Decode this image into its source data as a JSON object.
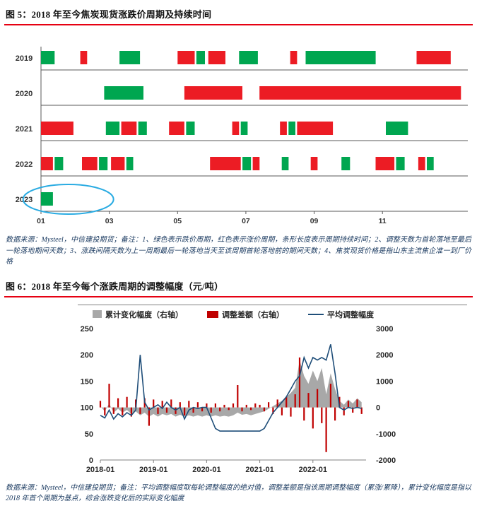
{
  "fig5": {
    "title": "图 5：2018 年至今焦炭现货涨跌价周期及持续时间",
    "note": "数据来源：Mysteel，中信建投期货；备注：1、绿色表示跌价周期，红色表示涨价周期，条形长度表示周期持续时间；2、调整天数为首轮落地至最后一轮落地期间天数；3、涨跌间隔天数为上一周期最后一轮落地当天至该周期首轮落地前的期间天数；4、焦炭现货价格是指山东主流焦企准一到厂价格"
  },
  "fig6": {
    "title": "图 6：2018 年至今每个涨跌周期的调整幅度（元/吨）",
    "note": "数据来源：Mysteel，中信建投期货；备注：平均调整幅度取每轮调整幅度的绝对值，调整差额是指该周期调整幅度（累涨/累降），累计变化幅度是指以 2018 年首个周期为基点，综合涨跌变化后的实际变化幅度"
  },
  "colors": {
    "fall_green": "#00a650",
    "rise_red": "#ec1c24",
    "rule_red": "#e60012",
    "note_blue": "#17375e",
    "line_blue": "#1f4e79",
    "bar_red": "#c00000",
    "area_gray": "#a8a8a8",
    "ellipse_blue": "#29abe2",
    "axis_gray": "#595959"
  },
  "chart_data": [
    {
      "type": "bar",
      "subtype": "gantt-cycles",
      "title": "2018 年至今焦炭现货涨跌价周期及持续时间",
      "x_ticks": [
        "01",
        "03",
        "05",
        "07",
        "09",
        "11"
      ],
      "x_tick_months": [
        1,
        3,
        5,
        7,
        9,
        11
      ],
      "x_range": [
        1,
        13.5
      ],
      "color_meaning": {
        "green": "跌价周期",
        "red": "涨价周期"
      },
      "rows": [
        {
          "year": "2019",
          "bars": [
            [
              1.0,
              1.4,
              "g"
            ],
            [
              2.15,
              2.35,
              "r"
            ],
            [
              3.3,
              3.9,
              "g"
            ],
            [
              5.0,
              5.5,
              "r"
            ],
            [
              5.55,
              5.8,
              "g"
            ],
            [
              5.9,
              6.4,
              "r"
            ],
            [
              6.8,
              7.35,
              "g"
            ],
            [
              8.3,
              8.5,
              "r"
            ],
            [
              8.75,
              10.8,
              "g"
            ],
            [
              12.0,
              13.0,
              "r"
            ]
          ]
        },
        {
          "year": "2020",
          "bars": [
            [
              2.85,
              4.0,
              "g"
            ],
            [
              5.2,
              6.9,
              "r"
            ],
            [
              7.4,
              13.3,
              "r"
            ]
          ]
        },
        {
          "year": "2021",
          "bars": [
            [
              1.0,
              1.95,
              "r"
            ],
            [
              2.9,
              3.3,
              "g"
            ],
            [
              3.35,
              3.8,
              "r"
            ],
            [
              3.85,
              4.1,
              "g"
            ],
            [
              4.75,
              5.2,
              "r"
            ],
            [
              5.25,
              5.5,
              "g"
            ],
            [
              6.6,
              6.8,
              "r"
            ],
            [
              6.85,
              7.05,
              "g"
            ],
            [
              8.0,
              8.2,
              "r"
            ],
            [
              8.25,
              8.45,
              "g"
            ],
            [
              8.5,
              9.55,
              "r"
            ],
            [
              11.1,
              11.75,
              "g"
            ]
          ]
        },
        {
          "year": "2022",
          "bars": [
            [
              1.0,
              1.35,
              "r"
            ],
            [
              1.4,
              1.65,
              "g"
            ],
            [
              2.2,
              2.65,
              "r"
            ],
            [
              2.7,
              2.95,
              "g"
            ],
            [
              3.05,
              3.45,
              "r"
            ],
            [
              3.5,
              3.7,
              "g"
            ],
            [
              5.95,
              6.85,
              "r"
            ],
            [
              6.9,
              7.15,
              "g"
            ],
            [
              7.2,
              7.4,
              "r"
            ],
            [
              8.05,
              8.25,
              "g"
            ],
            [
              8.9,
              9.1,
              "r"
            ],
            [
              9.8,
              10.05,
              "g"
            ],
            [
              10.8,
              11.35,
              "r"
            ],
            [
              11.4,
              11.65,
              "g"
            ],
            [
              12.05,
              12.25,
              "r"
            ],
            [
              12.3,
              12.5,
              "g"
            ]
          ]
        },
        {
          "year": "2023",
          "bars": [
            [
              1.0,
              1.35,
              "g"
            ]
          ]
        }
      ],
      "annotation": {
        "shape": "ellipse",
        "row": "2023",
        "center_month": 1.8
      }
    },
    {
      "type": "line",
      "subtype": "combo-area-bar-line",
      "title": "2018 年至今每个涨跌周期的调整幅度（元/吨）",
      "legend": [
        "累计变化幅度（右轴）",
        "调整差额（右轴）",
        "平均调整幅度"
      ],
      "x_tick_labels": [
        "2018-01",
        "2019-01",
        "2020-01",
        "2021-01",
        "2022-01"
      ],
      "x_tick_index": [
        0,
        12,
        24,
        36,
        48
      ],
      "n_points": 60,
      "left_axis": {
        "ticks": [
          0,
          50,
          100,
          150,
          200,
          250
        ],
        "range": [
          0,
          250
        ]
      },
      "right_axis": {
        "ticks": [
          -2000,
          -1000,
          0,
          1000,
          2000,
          3000
        ],
        "range": [
          -2000,
          3000
        ]
      },
      "series": [
        {
          "name": "累计变化幅度（右轴）",
          "type": "area",
          "axis": "right",
          "values": [
            50,
            -150,
            150,
            -200,
            -50,
            -200,
            -100,
            -250,
            -150,
            -300,
            -200,
            -350,
            -250,
            -350,
            -250,
            -300,
            -250,
            -350,
            -280,
            -350,
            -300,
            -350,
            -300,
            -350,
            -300,
            -350,
            -300,
            -350,
            -320,
            -350,
            -300,
            -200,
            -280,
            -250,
            -300,
            -250,
            -200,
            -150,
            -50,
            50,
            150,
            250,
            400,
            550,
            750,
            1800,
            1200,
            900,
            1400,
            1000,
            1500,
            500,
            1300,
            700,
            250,
            100,
            300,
            150,
            350,
            200
          ]
        },
        {
          "name": "调整差额（右轴）",
          "type": "bar",
          "axis": "right",
          "values": [
            250,
            -300,
            900,
            -250,
            350,
            -300,
            400,
            -350,
            300,
            -250,
            350,
            -700,
            300,
            -250,
            250,
            -200,
            300,
            -250,
            200,
            -300,
            250,
            -200,
            200,
            -150,
            150,
            -200,
            150,
            -150,
            100,
            -100,
            150,
            850,
            -150,
            100,
            -100,
            150,
            100,
            -150,
            200,
            -250,
            300,
            -300,
            400,
            -350,
            500,
            1900,
            -500,
            550,
            -800,
            700,
            -600,
            -1700,
            900,
            -500,
            400,
            -300,
            250,
            -200,
            300,
            -250
          ]
        },
        {
          "name": "平均调整幅度",
          "type": "line",
          "axis": "left",
          "values": [
            85,
            80,
            95,
            78,
            88,
            82,
            90,
            85,
            95,
            200,
            110,
            95,
            100,
            105,
            98,
            110,
            100,
            95,
            100,
            78,
            95,
            100,
            98,
            100,
            100,
            80,
            60,
            55,
            55,
            55,
            55,
            55,
            55,
            55,
            55,
            55,
            55,
            60,
            75,
            90,
            100,
            110,
            120,
            135,
            150,
            160,
            195,
            175,
            195,
            190,
            195,
            190,
            220,
            165,
            100,
            95,
            100,
            98,
            100,
            98
          ]
        }
      ]
    }
  ]
}
